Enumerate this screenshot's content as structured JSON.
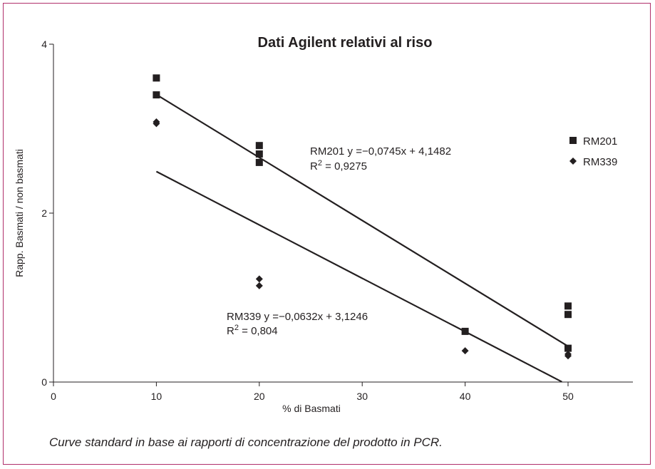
{
  "chart_data": {
    "type": "scatter",
    "title": "Dati Agilent relativi al riso",
    "xlabel": "% di Basmati",
    "ylabel": "Rapp. Basmati / non basmati",
    "xlim": [
      0,
      56
    ],
    "ylim": [
      0,
      4
    ],
    "x_ticks": [
      0,
      10,
      20,
      30,
      40,
      50
    ],
    "y_ticks": [
      0,
      2,
      4
    ],
    "grid": false,
    "legend_position": "right",
    "series": [
      {
        "name": "RM201",
        "marker": "square",
        "color": "#231f20",
        "points": [
          [
            10,
            3.6
          ],
          [
            10,
            3.4
          ],
          [
            20,
            2.8
          ],
          [
            20,
            2.7
          ],
          [
            20,
            2.6
          ],
          [
            40,
            0.6
          ],
          [
            50,
            0.9
          ],
          [
            50,
            0.8
          ],
          [
            50,
            0.4
          ]
        ],
        "trendline": {
          "slope": -0.0745,
          "intercept": 4.1482,
          "x_range": [
            10,
            50
          ]
        },
        "equation": "RM201 y =−0,0745x + 4,1482",
        "r2_prefix": "R",
        "r2_exponent": "2",
        "r2_value": " = 0,9275"
      },
      {
        "name": "RM339",
        "marker": "diamond",
        "color": "#231f20",
        "points": [
          [
            10,
            3.08
          ],
          [
            10,
            3.06
          ],
          [
            20,
            1.22
          ],
          [
            20,
            1.14
          ],
          [
            40,
            0.37
          ],
          [
            50,
            0.33
          ],
          [
            50,
            0.31
          ]
        ],
        "trendline": {
          "slope": -0.0632,
          "intercept": 3.1246,
          "x_range": [
            10,
            49.4
          ]
        },
        "equation": "RM339 y =−0,0632x + 3,1246",
        "r2_prefix": "R",
        "r2_exponent": "2",
        "r2_value": " = 0,804"
      }
    ]
  },
  "caption": "Curve standard in base ai rapporti di concentrazione del prodotto in PCR."
}
